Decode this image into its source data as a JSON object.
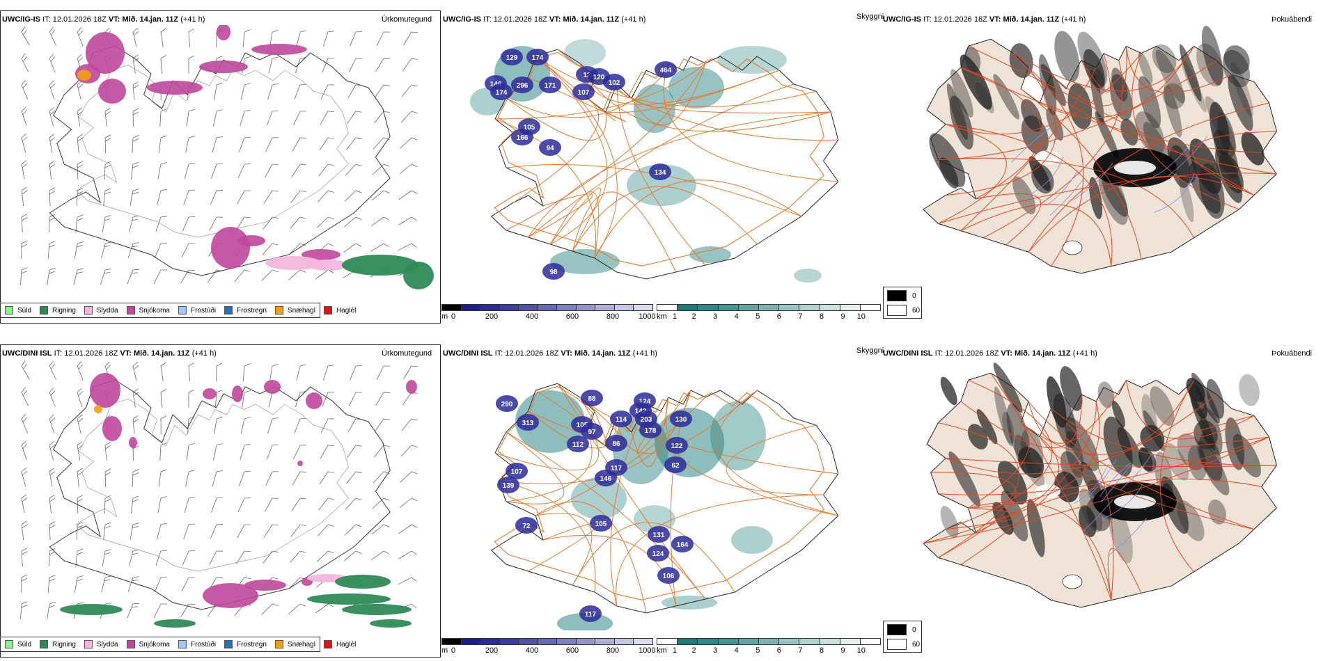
{
  "rows": [
    {
      "model": "UWC/IG-IS",
      "it_label": "IT:",
      "it_value": "12.01.2026 18Z",
      "vt_label": "VT:",
      "vt_value": "Mið. 14.jan. 11Z",
      "lead": "(+41 h)",
      "visibility_labels": [
        "129",
        "174",
        "146",
        "174",
        "296",
        "171",
        "105",
        "166",
        "94",
        "107",
        "12",
        "120",
        "102",
        "464",
        "134",
        "98"
      ]
    },
    {
      "model": "UWC/DINI ISL",
      "it_label": "IT:",
      "it_value": "12.01.2026 18Z",
      "vt_label": "VT:",
      "vt_value": "Mið. 14.jan. 11Z",
      "lead": "(+41 h)",
      "visibility_labels": [
        "290",
        "313",
        "107",
        "139",
        "72",
        "88",
        "105",
        "97",
        "112",
        "86",
        "117",
        "146",
        "114",
        "124",
        "142",
        "203",
        "178",
        "130",
        "122",
        "62",
        "105",
        "131",
        "164",
        "124",
        "106",
        "117"
      ]
    }
  ],
  "panel_labels": {
    "precip_type": "Úrkomutegund",
    "visibility": "Skyggni",
    "fog": "Þokuábendi"
  },
  "precip_legend": [
    {
      "label": "Súld",
      "color": "#90ee90"
    },
    {
      "label": "Rigning",
      "color": "#2e8b57"
    },
    {
      "label": "Slydda",
      "color": "#f4b6dd"
    },
    {
      "label": "Snjókoma",
      "color": "#c0479b"
    },
    {
      "label": "Frostúði",
      "color": "#9ec9f4"
    },
    {
      "label": "Frostregn",
      "color": "#2a6fb8"
    },
    {
      "label": "Snæhagl",
      "color": "#f39c12"
    },
    {
      "label": "Haglél",
      "color": "#e0101a"
    }
  ],
  "ceiling_scale": {
    "unit": "m",
    "ticks": [
      "0",
      "200",
      "400",
      "600",
      "800",
      "1000"
    ],
    "colors": [
      "#000000",
      "#1c1c8c",
      "#2b2b96",
      "#3c3ca0",
      "#5050aa",
      "#6767b6",
      "#7e7ec2",
      "#9696ce",
      "#aeaed9",
      "#c6c6e4",
      "#dcdcf0"
    ]
  },
  "visibility_scale": {
    "unit": "km",
    "ticks": [
      "1",
      "2",
      "3",
      "4",
      "5",
      "6",
      "7",
      "8",
      "9",
      "10"
    ],
    "colors": [
      "#ffffff",
      "#1f7a78",
      "#2f8886",
      "#489694",
      "#62a5a3",
      "#7db4b2",
      "#97c3c1",
      "#b1d2d0",
      "#cbe1e0",
      "#e5f0ef",
      "#ffffff"
    ]
  },
  "fog_legend": [
    {
      "value": "0",
      "color": "#000000"
    },
    {
      "value": "60",
      "color": "#ffffff"
    }
  ],
  "colors": {
    "snow": "#c0479b",
    "rain": "#2e8b57",
    "sleet": "#f4b6dd",
    "hail_snow": "#f39c12",
    "teal": "#2f8886",
    "ceiling": "#2b2b9a",
    "roads": "#e8782a",
    "fog_roads": "#e0481e",
    "land_fog": "#efe2d6"
  }
}
